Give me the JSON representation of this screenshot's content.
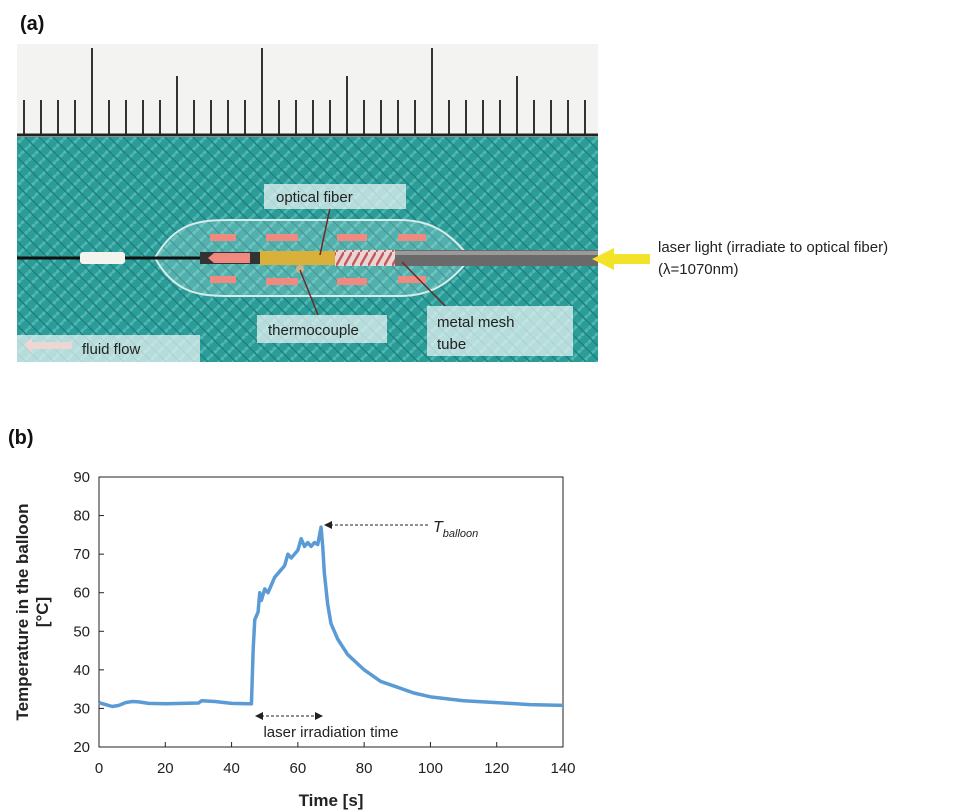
{
  "panel_a": {
    "label": "(a)",
    "annotations": {
      "optical_fiber": "optical fiber",
      "thermocouple": "thermocouple",
      "metal_mesh_tube": [
        "metal mesh",
        "tube"
      ],
      "fluid_flow": "fluid flow",
      "laser_light": "laser light (irradiate to optical fiber)",
      "wavelength": "(λ=1070nm)"
    }
  },
  "panel_b_label": "(b)",
  "chart_data": {
    "type": "line",
    "xlabel": "Time [s]",
    "ylabel": [
      "Temperature in the balloon",
      "[°C]"
    ],
    "x": [
      0,
      2,
      4,
      6,
      8,
      10,
      12,
      15,
      20,
      25,
      30,
      31,
      35,
      40,
      45,
      46,
      46.5,
      47,
      48,
      48.5,
      49,
      50,
      51,
      52,
      53,
      54,
      55,
      56,
      57,
      58,
      59,
      60,
      61,
      62,
      63,
      64,
      65,
      66,
      67,
      67.5,
      68,
      69,
      70,
      72,
      75,
      80,
      85,
      90,
      95,
      100,
      110,
      120,
      130,
      140
    ],
    "series": [
      {
        "color": "#5b9bd5",
        "values": [
          31.5,
          31,
          30.5,
          30.8,
          31.5,
          31.8,
          31.7,
          31.3,
          31.2,
          31.3,
          31.4,
          32,
          31.8,
          31.3,
          31.2,
          31.2,
          45,
          53,
          55,
          60,
          58,
          61,
          60,
          62,
          64,
          65,
          66,
          67,
          70,
          69,
          70,
          71,
          74,
          72,
          73,
          72,
          73,
          72.5,
          77,
          72,
          65,
          57,
          52,
          48,
          44,
          40,
          37,
          35.5,
          34,
          33,
          32,
          31.5,
          31,
          30.8
        ]
      }
    ],
    "xlim": [
      0,
      140
    ],
    "ylim": [
      20,
      90
    ],
    "xticks": [
      0,
      20,
      40,
      60,
      80,
      100,
      120,
      140
    ],
    "yticks": [
      20,
      30,
      40,
      50,
      60,
      70,
      80,
      90
    ],
    "annotations": {
      "t_balloon": {
        "symbol": "T",
        "subscript": "balloon"
      },
      "irradiation": "laser irradiation time"
    }
  }
}
